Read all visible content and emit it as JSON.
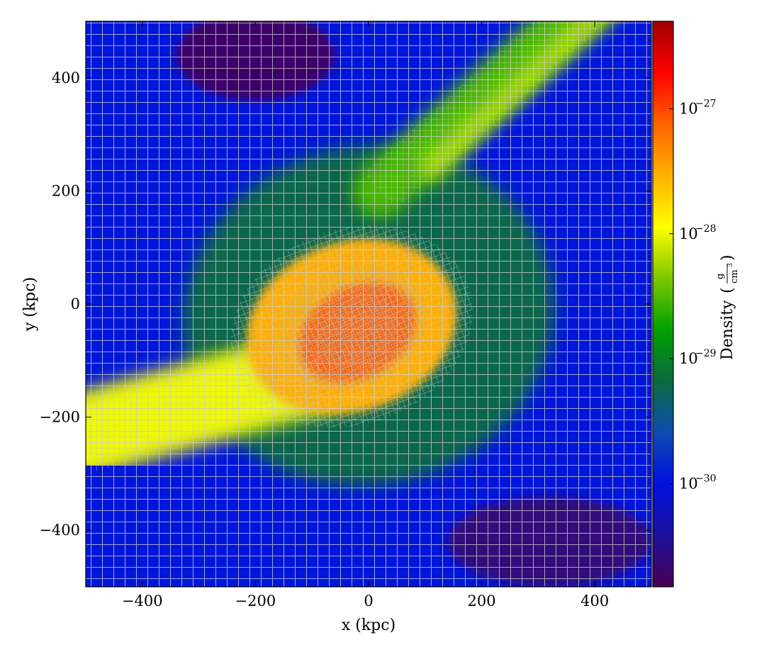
{
  "chart_data": {
    "type": "heatmap",
    "title": "",
    "xlabel": "x  (kpc)",
    "ylabel": "y  (kpc)",
    "xlim": [
      -500,
      500
    ],
    "ylim": [
      -500,
      500
    ],
    "x_ticks": [
      -400,
      -200,
      0,
      200,
      400
    ],
    "y_ticks": [
      -400,
      -200,
      0,
      200,
      400
    ],
    "x_tick_labels": [
      "−400",
      "−200",
      "0",
      "200",
      "400"
    ],
    "y_tick_labels": [
      "−400",
      "−200",
      "0",
      "200",
      "400"
    ],
    "grid": "AMR grid overlay (block outlines), refined toward dense regions",
    "colorbar": {
      "label": "Density",
      "unit_numerator": "g",
      "unit_denominator": "cm",
      "unit_denominator_power": "3",
      "scale": "log",
      "vmin": 1.5e-31,
      "vmax": 5e-27,
      "ticks": [
        1e-30,
        1e-29,
        1e-28,
        1e-27
      ],
      "tick_labels": [
        {
          "base": "10",
          "exp": "−30"
        },
        {
          "base": "10",
          "exp": "−29"
        },
        {
          "base": "10",
          "exp": "−28"
        },
        {
          "base": "10",
          "exp": "−27"
        }
      ],
      "colormap": [
        "#4a0055",
        "#1c0f9a",
        "#0010e0",
        "#0c4cb0",
        "#0a6a40",
        "#00a000",
        "#7cc800",
        "#ffff00",
        "#ffb000",
        "#ff6400",
        "#ff0000",
        "#a00000"
      ]
    },
    "features": [
      {
        "kind": "blob",
        "x": -30,
        "y": -40,
        "rx": 190,
        "ry": 150,
        "rot": -20,
        "density": 3e-28
      },
      {
        "kind": "blob",
        "x": -20,
        "y": -50,
        "rx": 110,
        "ry": 80,
        "rot": -30,
        "density": 8e-28
      },
      {
        "kind": "halo",
        "x": 0,
        "y": -20,
        "rx": 330,
        "ry": 300,
        "rot": -15,
        "density": 8e-30
      },
      {
        "kind": "filament",
        "x1": -500,
        "y1": -230,
        "x2": -100,
        "y2": -120,
        "width": 150,
        "density": 1e-28
      },
      {
        "kind": "filament",
        "x1": 20,
        "y1": 200,
        "x2": 420,
        "y2": 560,
        "width": 95,
        "density": 3e-29
      },
      {
        "kind": "filament",
        "x1": 110,
        "y1": 240,
        "x2": 460,
        "y2": 560,
        "width": 40,
        "density": 6e-29
      },
      {
        "kind": "void",
        "x": -200,
        "y": 440,
        "rx": 140,
        "ry": 80,
        "density": 2e-31
      },
      {
        "kind": "void",
        "x": 320,
        "y": -420,
        "rx": 180,
        "ry": 80,
        "density": 2.5e-31
      }
    ]
  }
}
